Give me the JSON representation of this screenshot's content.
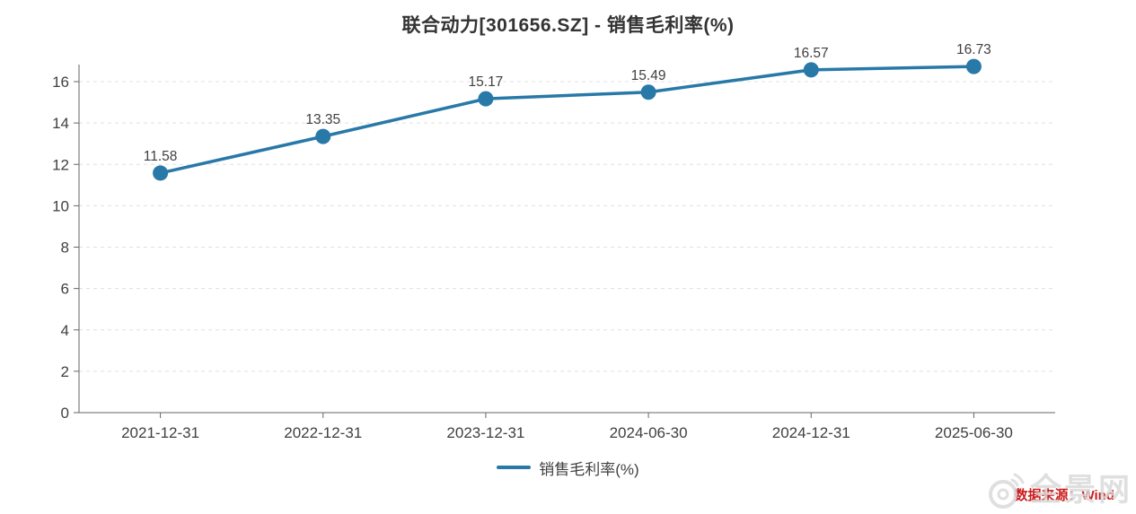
{
  "title": "联合动力[301656.SZ] - 销售毛利率(%)",
  "chart_data": {
    "type": "line",
    "title": "联合动力[301656.SZ] - 销售毛利率(%)",
    "categories": [
      "2021-12-31",
      "2022-12-31",
      "2023-12-31",
      "2024-06-30",
      "2024-12-31",
      "2025-06-30"
    ],
    "series": [
      {
        "name": "销售毛利率(%)",
        "color": "#2878a8",
        "values": [
          11.58,
          13.35,
          15.17,
          15.49,
          16.57,
          16.73
        ],
        "point_labels": [
          "11.58",
          "13.35",
          "15.17",
          "15.49",
          "16.57",
          "16.73"
        ]
      }
    ],
    "xlabel": "",
    "ylabel": "",
    "ylim": [
      0,
      17
    ],
    "y_ticks": [
      0,
      2,
      4,
      6,
      8,
      10,
      12,
      14,
      16
    ],
    "grid": "horizontal-dashed",
    "legend_position": "bottom-center",
    "point_labels_visible": true
  },
  "legend": {
    "items": [
      {
        "label": "销售毛利率(%)",
        "color": "#2878a8"
      }
    ]
  },
  "footer": {
    "source_label": "数据来源：Wind",
    "watermark_text": "全景网"
  },
  "colors": {
    "line": "#2878a8",
    "axis": "#666666",
    "grid": "#e0e0e0",
    "tick_label": "#404040",
    "data_label": "#404040",
    "title": "#333333",
    "source_red": "#cc1b1b",
    "watermark_gray": "#d9d9d9",
    "background": "#ffffff"
  }
}
